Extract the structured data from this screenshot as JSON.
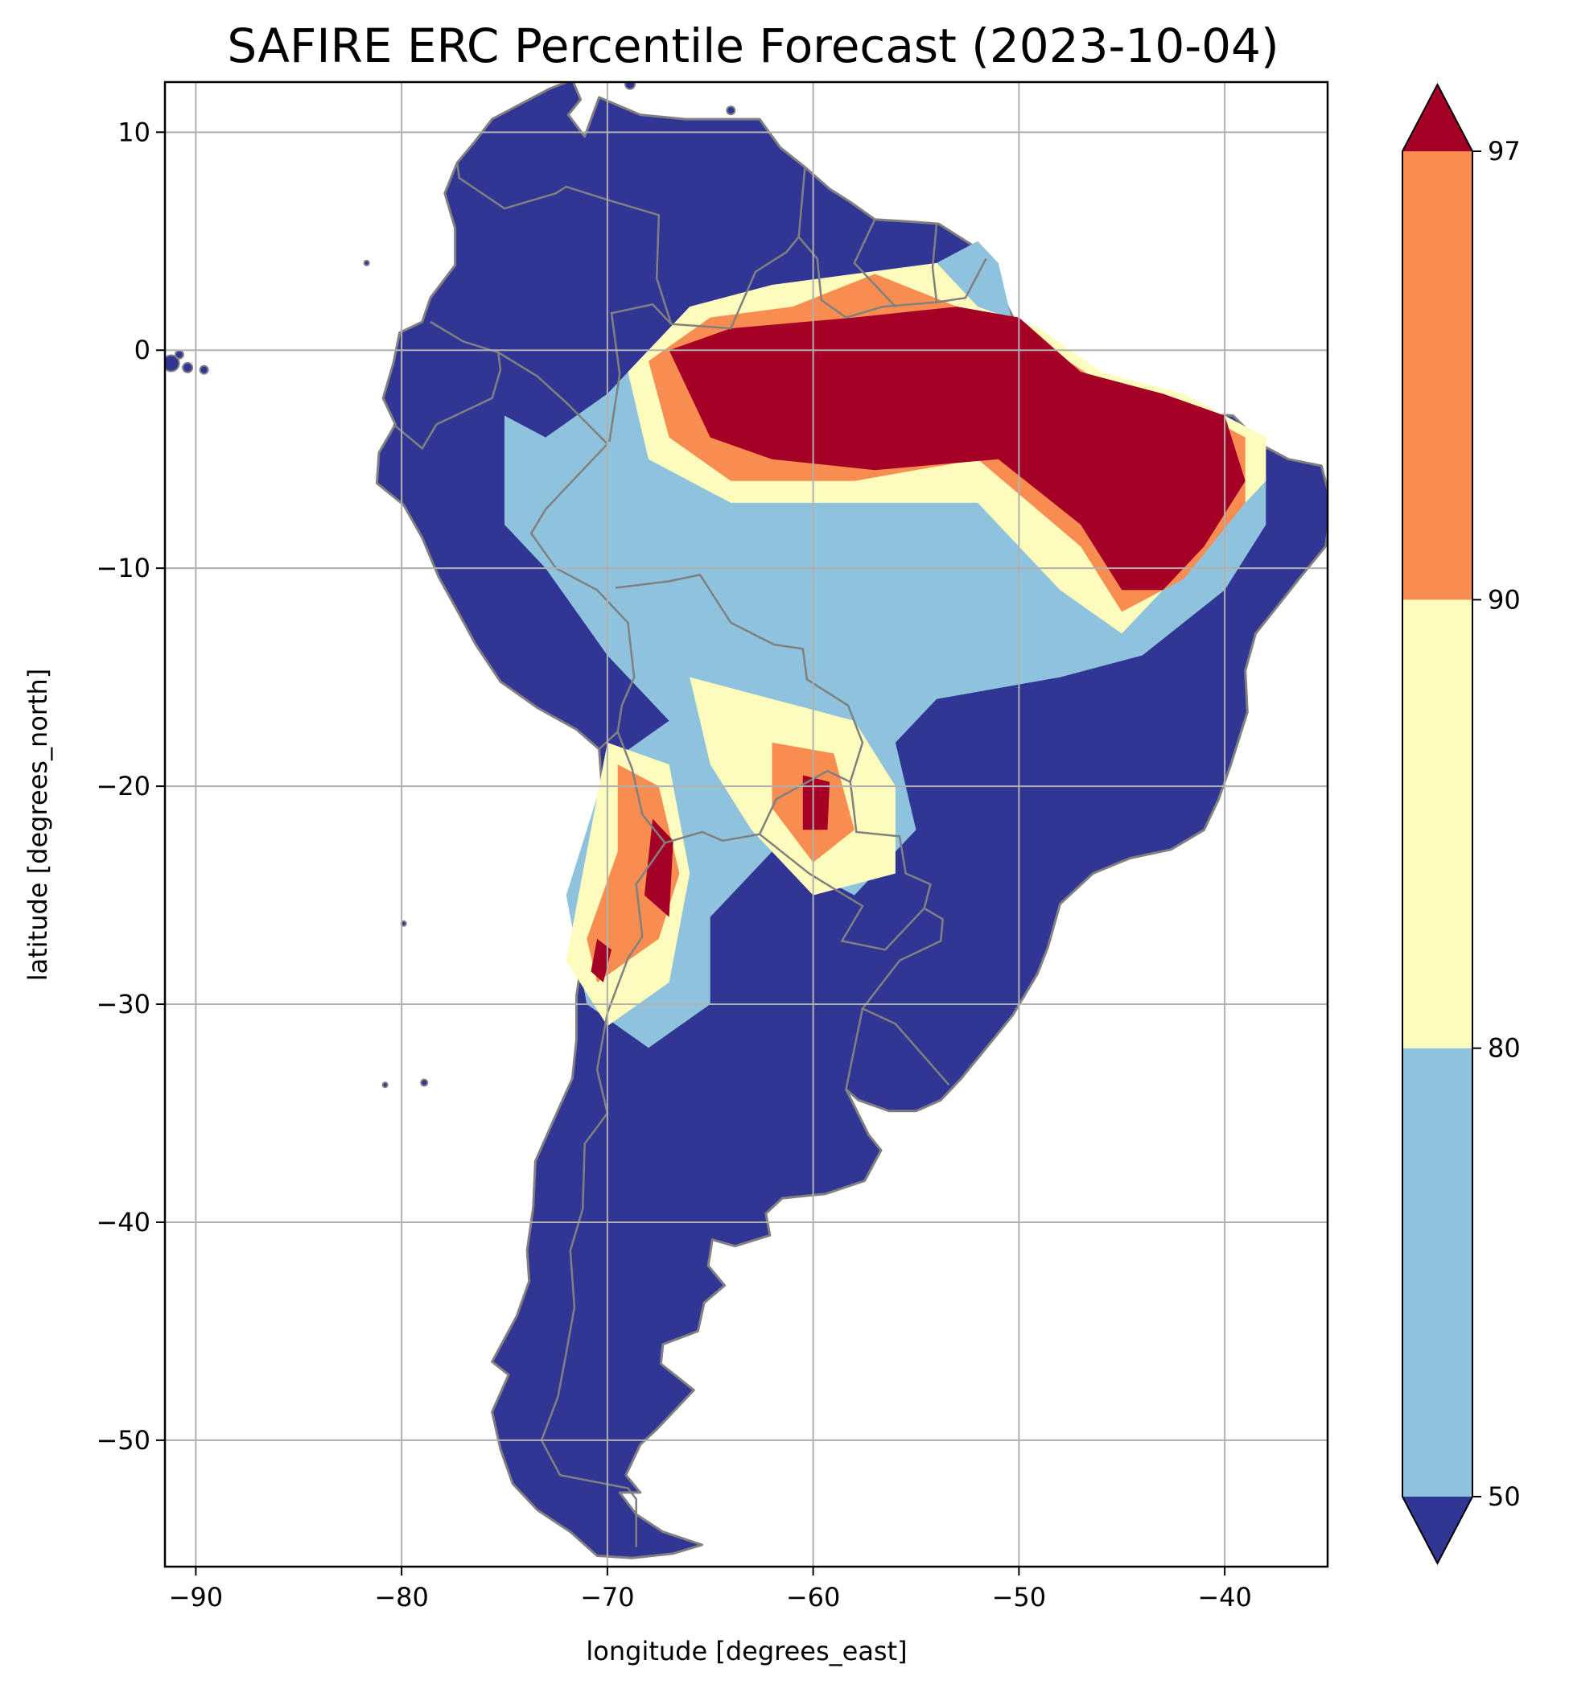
{
  "chart_data": {
    "type": "heatmap",
    "title": "SAFIRE ERC Percentile Forecast (2023-10-04)",
    "xlabel": "longitude [degrees_east]",
    "ylabel": "latitude [degrees_north]",
    "xlim": [
      -91.5,
      -35
    ],
    "ylim": [
      -55.8,
      12.3
    ],
    "x_ticks": [
      -90,
      -80,
      -70,
      -60,
      -50,
      -40
    ],
    "x_tick_labels": [
      "−90",
      "−80",
      "−70",
      "−60",
      "−50",
      "−40"
    ],
    "y_ticks": [
      10,
      0,
      -10,
      -20,
      -30,
      -40,
      -50
    ],
    "y_tick_labels": [
      "10",
      "0",
      "−10",
      "−20",
      "−30",
      "−40",
      "−50"
    ],
    "grid": true,
    "colorbar": {
      "position": "right",
      "extend": "both",
      "boundaries": [
        50,
        80,
        90,
        97
      ],
      "tick_labels": [
        "50",
        "80",
        "90",
        "97"
      ],
      "colors": {
        "under": "#313695",
        "50-80": "#8fc3dd",
        "80-90": "#fefcbd",
        "90-97": "#f88d51",
        "over": "#a50026"
      }
    },
    "background_class_color": "#313695",
    "border_color": "#808080",
    "regions": [
      {
        "class": "50-80",
        "color": "#8fc3dd",
        "lonlat": [
          [
            -75,
            -3
          ],
          [
            -73,
            -4
          ],
          [
            -70,
            -2
          ],
          [
            -68,
            0
          ],
          [
            -66,
            1
          ],
          [
            -63,
            2
          ],
          [
            -60,
            3
          ],
          [
            -56,
            3
          ],
          [
            -52,
            5
          ],
          [
            -51,
            4
          ],
          [
            -50,
            0
          ],
          [
            -48,
            -1
          ],
          [
            -44,
            -2
          ],
          [
            -40,
            -3
          ],
          [
            -38,
            -4
          ],
          [
            -38,
            -8
          ],
          [
            -40,
            -11
          ],
          [
            -44,
            -14
          ],
          [
            -48,
            -15
          ],
          [
            -54,
            -16
          ],
          [
            -56,
            -18
          ],
          [
            -55,
            -22
          ],
          [
            -58,
            -25
          ],
          [
            -62,
            -23
          ],
          [
            -65,
            -26
          ],
          [
            -65,
            -30
          ],
          [
            -68,
            -32
          ],
          [
            -71,
            -30
          ],
          [
            -72,
            -25
          ],
          [
            -70,
            -19
          ],
          [
            -67,
            -17
          ],
          [
            -70,
            -14
          ],
          [
            -73,
            -10
          ],
          [
            -75,
            -8
          ]
        ]
      },
      {
        "class": "80-90",
        "color": "#fefcbd",
        "lonlat": [
          [
            -69,
            -1
          ],
          [
            -66,
            2
          ],
          [
            -62,
            3
          ],
          [
            -58,
            3.5
          ],
          [
            -54,
            4
          ],
          [
            -52,
            2
          ],
          [
            -49,
            1
          ],
          [
            -46,
            -1
          ],
          [
            -42,
            -2
          ],
          [
            -38,
            -4
          ],
          [
            -38,
            -6
          ],
          [
            -41,
            -9
          ],
          [
            -45,
            -13
          ],
          [
            -48,
            -11
          ],
          [
            -52,
            -7
          ],
          [
            -58,
            -7
          ],
          [
            -64,
            -7
          ],
          [
            -68,
            -5
          ]
        ]
      },
      {
        "class": "90-97",
        "color": "#f88d51",
        "lonlat": [
          [
            -68,
            -0.5
          ],
          [
            -65,
            1.5
          ],
          [
            -61,
            2
          ],
          [
            -57,
            3.5
          ],
          [
            -53,
            2
          ],
          [
            -50,
            1
          ],
          [
            -46,
            -1.5
          ],
          [
            -42,
            -2.5
          ],
          [
            -39,
            -4
          ],
          [
            -39,
            -7
          ],
          [
            -42,
            -10.5
          ],
          [
            -45,
            -12
          ],
          [
            -47,
            -9
          ],
          [
            -52,
            -5
          ],
          [
            -58,
            -6
          ],
          [
            -64,
            -6
          ],
          [
            -67,
            -4
          ]
        ]
      },
      {
        "class": "over",
        "color": "#a50026",
        "lonlat": [
          [
            -67,
            0
          ],
          [
            -64,
            1
          ],
          [
            -58,
            1.5
          ],
          [
            -53,
            2
          ],
          [
            -50,
            1.5
          ],
          [
            -47,
            -1
          ],
          [
            -43,
            -2
          ],
          [
            -40,
            -3
          ],
          [
            -39,
            -6
          ],
          [
            -41,
            -9
          ],
          [
            -43,
            -11
          ],
          [
            -45,
            -11
          ],
          [
            -47,
            -8
          ],
          [
            -51,
            -5
          ],
          [
            -57,
            -5.5
          ],
          [
            -62,
            -5
          ],
          [
            -65,
            -4
          ]
        ]
      },
      {
        "class": "80-90",
        "color": "#fefcbd",
        "lonlat": [
          [
            -66,
            -15
          ],
          [
            -62,
            -16
          ],
          [
            -58,
            -17
          ],
          [
            -56,
            -20
          ],
          [
            -56,
            -24
          ],
          [
            -60,
            -25
          ],
          [
            -63,
            -22
          ],
          [
            -65,
            -19
          ]
        ]
      },
      {
        "class": "80-90",
        "color": "#fefcbd",
        "lonlat": [
          [
            -70,
            -18
          ],
          [
            -67,
            -19
          ],
          [
            -66,
            -24
          ],
          [
            -67,
            -29
          ],
          [
            -70,
            -31
          ],
          [
            -72,
            -28
          ],
          [
            -71,
            -23
          ]
        ]
      },
      {
        "class": "90-97",
        "color": "#f88d51",
        "lonlat": [
          [
            -62,
            -18
          ],
          [
            -59,
            -18.5
          ],
          [
            -58,
            -22
          ],
          [
            -60,
            -23.5
          ],
          [
            -62,
            -21
          ]
        ]
      },
      {
        "class": "over",
        "color": "#a50026",
        "lonlat": [
          [
            -60.5,
            -19.5
          ],
          [
            -59.2,
            -19.8
          ],
          [
            -59.3,
            -22
          ],
          [
            -60.5,
            -22
          ]
        ]
      },
      {
        "class": "90-97",
        "color": "#f88d51",
        "lonlat": [
          [
            -69.5,
            -19
          ],
          [
            -67.5,
            -20
          ],
          [
            -66.5,
            -24
          ],
          [
            -67.5,
            -27
          ],
          [
            -70.5,
            -29
          ],
          [
            -71,
            -27
          ],
          [
            -69.5,
            -23
          ]
        ]
      },
      {
        "class": "over",
        "color": "#a50026",
        "lonlat": [
          [
            -67.8,
            -21.5
          ],
          [
            -66.8,
            -22.5
          ],
          [
            -67,
            -26
          ],
          [
            -68.2,
            -25
          ]
        ]
      },
      {
        "class": "over",
        "color": "#a50026",
        "lonlat": [
          [
            -70.5,
            -27
          ],
          [
            -69.8,
            -27.5
          ],
          [
            -70.2,
            -29
          ],
          [
            -70.8,
            -28.5
          ]
        ]
      }
    ]
  }
}
